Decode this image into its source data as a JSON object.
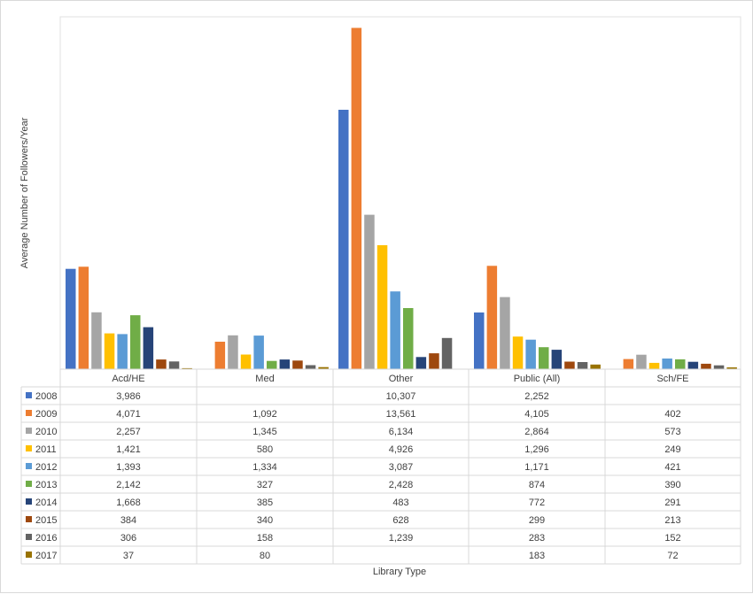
{
  "chart_data": {
    "type": "bar",
    "title": "",
    "xlabel": "Library Type",
    "ylabel": "Average Number of Followers/Year",
    "categories": [
      "Acd/HE",
      "Med",
      "Other",
      "Public (All)",
      "Sch/FE"
    ],
    "ylim": [
      0,
      14000
    ],
    "grid": false,
    "legend": "data-table",
    "series": [
      {
        "name": "2008",
        "color": "#4472c4",
        "values": [
          3986,
          null,
          10307,
          2252,
          null
        ],
        "labels": [
          "3,986",
          "",
          "10,307",
          "2,252",
          ""
        ]
      },
      {
        "name": "2009",
        "color": "#ed7d31",
        "values": [
          4071,
          1092,
          13561,
          4105,
          402
        ],
        "labels": [
          "4,071",
          "1,092",
          "13,561",
          "4,105",
          "402"
        ]
      },
      {
        "name": "2010",
        "color": "#a5a5a5",
        "values": [
          2257,
          1345,
          6134,
          2864,
          573
        ],
        "labels": [
          "2,257",
          "1,345",
          "6,134",
          "2,864",
          "573"
        ]
      },
      {
        "name": "2011",
        "color": "#ffc000",
        "values": [
          1421,
          580,
          4926,
          1296,
          249
        ],
        "labels": [
          "1,421",
          "580",
          "4,926",
          "1,296",
          "249"
        ]
      },
      {
        "name": "2012",
        "color": "#5b9bd5",
        "values": [
          1393,
          1334,
          3087,
          1171,
          421
        ],
        "labels": [
          "1,393",
          "1,334",
          "3,087",
          "1,171",
          "421"
        ]
      },
      {
        "name": "2013",
        "color": "#70ad47",
        "values": [
          2142,
          327,
          2428,
          874,
          390
        ],
        "labels": [
          "2,142",
          "327",
          "2,428",
          "874",
          "390"
        ]
      },
      {
        "name": "2014",
        "color": "#264478",
        "values": [
          1668,
          385,
          483,
          772,
          291
        ],
        "labels": [
          "1,668",
          "385",
          "483",
          "772",
          "291"
        ]
      },
      {
        "name": "2015",
        "color": "#9e480e",
        "values": [
          384,
          340,
          628,
          299,
          213
        ],
        "labels": [
          "384",
          "340",
          "628",
          "299",
          "213"
        ]
      },
      {
        "name": "2016",
        "color": "#636363",
        "values": [
          306,
          158,
          1239,
          283,
          152
        ],
        "labels": [
          "306",
          "158",
          "1,239",
          "283",
          "152"
        ]
      },
      {
        "name": "2017",
        "color": "#997300",
        "values": [
          37,
          80,
          null,
          183,
          72
        ],
        "labels": [
          "37",
          "80",
          "",
          "183",
          "72"
        ]
      }
    ]
  }
}
